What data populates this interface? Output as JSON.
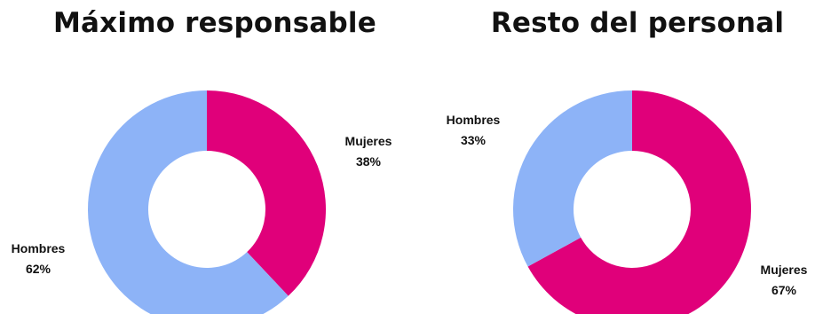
{
  "chart_data": [
    {
      "type": "pie",
      "title": "Máximo responsable",
      "categories": [
        "Mujeres",
        "Hombres"
      ],
      "values": [
        38,
        62
      ],
      "value_labels": [
        "38%",
        "62%"
      ],
      "colors": [
        "#e0007a",
        "#8db3f7"
      ]
    },
    {
      "type": "pie",
      "title": "Resto del personal",
      "categories": [
        "Mujeres",
        "Hombres"
      ],
      "values": [
        67,
        33
      ],
      "value_labels": [
        "67%",
        "33%"
      ],
      "colors": [
        "#e0007a",
        "#8db3f7"
      ]
    }
  ]
}
